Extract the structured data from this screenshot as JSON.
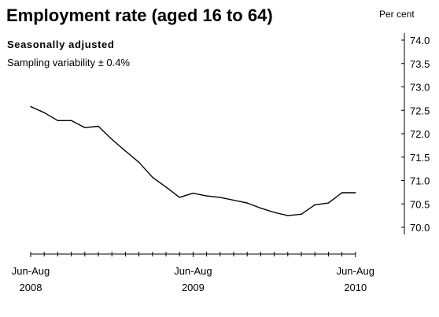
{
  "chart_data": {
    "type": "line",
    "title": "Employment rate (aged 16 to 64)",
    "subtitle": "Seasonally adjusted",
    "note": "Sampling variability ± 0.4%",
    "unit": "Per cent",
    "ylim": [
      70.0,
      74.0
    ],
    "y_ticks": [
      "74.0",
      "73.5",
      "73.0",
      "72.5",
      "72.0",
      "71.5",
      "71.0",
      "70.5",
      "70.0"
    ],
    "x_tick_labels": [
      {
        "period": "Jun-Aug",
        "year": "2008",
        "index": 0
      },
      {
        "period": "Jun-Aug",
        "year": "2009",
        "index": 12
      },
      {
        "period": "Jun-Aug",
        "year": "2010",
        "index": 24
      }
    ],
    "series": [
      {
        "values": [
          72.58,
          72.45,
          72.28,
          72.28,
          72.13,
          72.16,
          71.88,
          71.63,
          71.39,
          71.07,
          70.86,
          70.64,
          70.73,
          70.67,
          70.64,
          70.58,
          70.52,
          70.41,
          70.32,
          70.25,
          70.28,
          70.48,
          70.52,
          70.74,
          70.74
        ]
      }
    ],
    "grid": false,
    "line_color": "#000000"
  }
}
